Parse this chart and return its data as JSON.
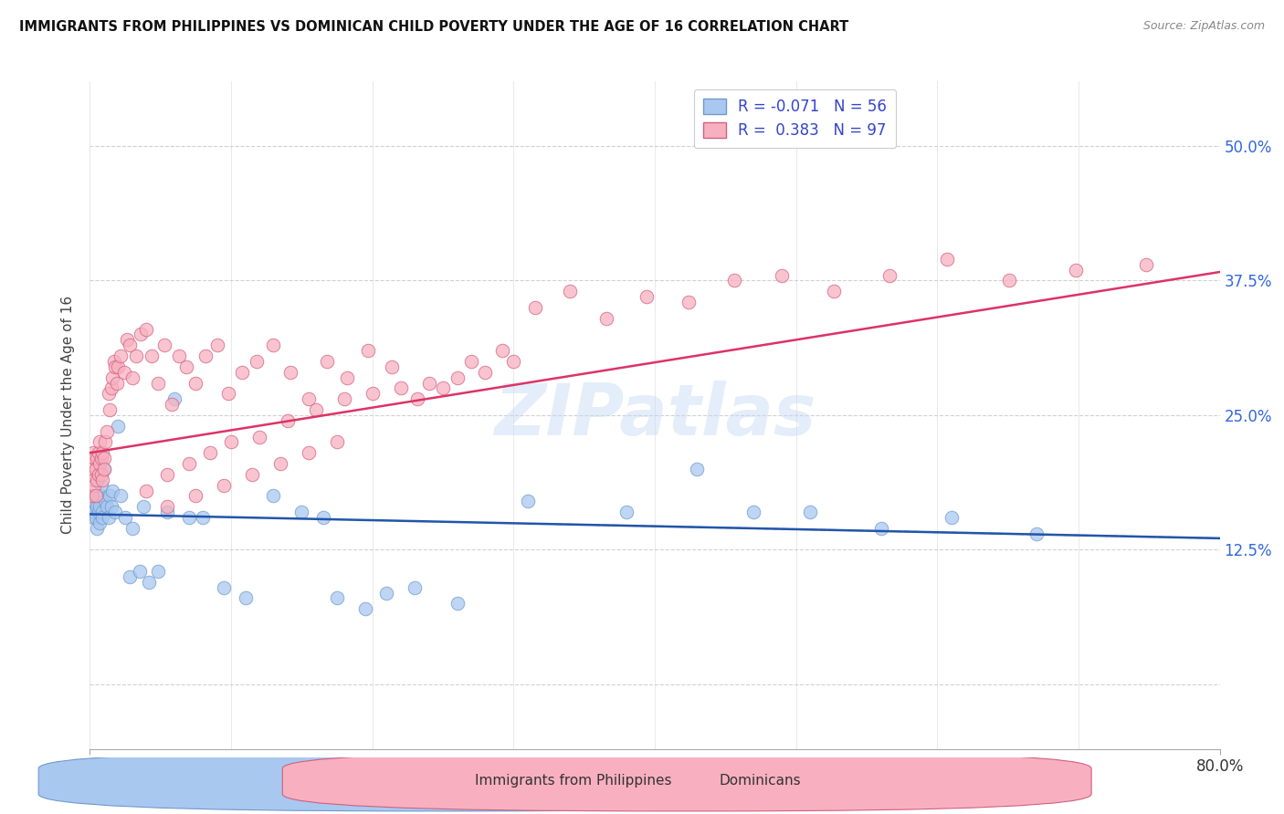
{
  "title": "IMMIGRANTS FROM PHILIPPINES VS DOMINICAN CHILD POVERTY UNDER THE AGE OF 16 CORRELATION CHART",
  "source": "Source: ZipAtlas.com",
  "ylabel": "Child Poverty Under the Age of 16",
  "yticks": [
    0.0,
    0.125,
    0.25,
    0.375,
    0.5
  ],
  "ytick_labels": [
    "",
    "12.5%",
    "25.0%",
    "37.5%",
    "50.0%"
  ],
  "xmin": 0.0,
  "xmax": 0.8,
  "ymin": -0.06,
  "ymax": 0.56,
  "legend_r1": "R = -0.071",
  "legend_n1": "N = 56",
  "legend_r2": "R =  0.383",
  "legend_n2": "N = 97",
  "legend_label1": "Immigrants from Philippines",
  "legend_label2": "Dominicans",
  "color_philippines": "#A8C8F0",
  "color_dominican": "#F8B0C0",
  "color_philippines_edge": "#7099CC",
  "color_dominican_edge": "#D06080",
  "color_philippines_line": "#2255AA",
  "color_dominican_line": "#DD3366",
  "background_color": "#ffffff",
  "grid_color": "#cccccc",
  "watermark": "ZIPatlas",
  "phil_x": [
    0.001,
    0.002,
    0.002,
    0.003,
    0.003,
    0.004,
    0.004,
    0.005,
    0.005,
    0.006,
    0.006,
    0.007,
    0.007,
    0.008,
    0.008,
    0.009,
    0.009,
    0.01,
    0.011,
    0.012,
    0.013,
    0.014,
    0.015,
    0.016,
    0.018,
    0.02,
    0.022,
    0.025,
    0.028,
    0.03,
    0.035,
    0.038,
    0.042,
    0.048,
    0.055,
    0.06,
    0.07,
    0.08,
    0.095,
    0.11,
    0.13,
    0.15,
    0.165,
    0.175,
    0.195,
    0.21,
    0.23,
    0.26,
    0.31,
    0.38,
    0.43,
    0.47,
    0.51,
    0.56,
    0.61,
    0.67
  ],
  "phil_y": [
    0.175,
    0.165,
    0.155,
    0.16,
    0.17,
    0.155,
    0.175,
    0.165,
    0.145,
    0.16,
    0.175,
    0.15,
    0.165,
    0.175,
    0.185,
    0.16,
    0.155,
    0.2,
    0.17,
    0.165,
    0.155,
    0.175,
    0.165,
    0.18,
    0.16,
    0.24,
    0.175,
    0.155,
    0.1,
    0.145,
    0.105,
    0.165,
    0.095,
    0.105,
    0.16,
    0.265,
    0.155,
    0.155,
    0.09,
    0.08,
    0.175,
    0.16,
    0.155,
    0.08,
    0.07,
    0.085,
    0.09,
    0.075,
    0.17,
    0.16,
    0.2,
    0.16,
    0.16,
    0.145,
    0.155,
    0.14
  ],
  "dom_x": [
    0.001,
    0.001,
    0.002,
    0.002,
    0.003,
    0.003,
    0.004,
    0.004,
    0.005,
    0.005,
    0.006,
    0.006,
    0.007,
    0.007,
    0.008,
    0.008,
    0.009,
    0.009,
    0.01,
    0.01,
    0.011,
    0.012,
    0.013,
    0.014,
    0.015,
    0.016,
    0.017,
    0.018,
    0.019,
    0.02,
    0.022,
    0.024,
    0.026,
    0.028,
    0.03,
    0.033,
    0.036,
    0.04,
    0.044,
    0.048,
    0.053,
    0.058,
    0.063,
    0.068,
    0.075,
    0.082,
    0.09,
    0.098,
    0.108,
    0.118,
    0.13,
    0.142,
    0.155,
    0.168,
    0.182,
    0.197,
    0.214,
    0.232,
    0.25,
    0.27,
    0.292,
    0.315,
    0.34,
    0.366,
    0.394,
    0.424,
    0.456,
    0.49,
    0.527,
    0.566,
    0.607,
    0.651,
    0.698,
    0.748,
    0.04,
    0.055,
    0.07,
    0.085,
    0.1,
    0.12,
    0.14,
    0.16,
    0.18,
    0.2,
    0.22,
    0.24,
    0.26,
    0.28,
    0.3,
    0.055,
    0.075,
    0.095,
    0.115,
    0.135,
    0.155,
    0.175
  ],
  "dom_y": [
    0.175,
    0.2,
    0.19,
    0.215,
    0.185,
    0.21,
    0.175,
    0.2,
    0.19,
    0.21,
    0.195,
    0.215,
    0.205,
    0.225,
    0.195,
    0.21,
    0.215,
    0.19,
    0.21,
    0.2,
    0.225,
    0.235,
    0.27,
    0.255,
    0.275,
    0.285,
    0.3,
    0.295,
    0.28,
    0.295,
    0.305,
    0.29,
    0.32,
    0.315,
    0.285,
    0.305,
    0.325,
    0.33,
    0.305,
    0.28,
    0.315,
    0.26,
    0.305,
    0.295,
    0.28,
    0.305,
    0.315,
    0.27,
    0.29,
    0.3,
    0.315,
    0.29,
    0.265,
    0.3,
    0.285,
    0.31,
    0.295,
    0.265,
    0.275,
    0.3,
    0.31,
    0.35,
    0.365,
    0.34,
    0.36,
    0.355,
    0.375,
    0.38,
    0.365,
    0.38,
    0.395,
    0.375,
    0.385,
    0.39,
    0.18,
    0.195,
    0.205,
    0.215,
    0.225,
    0.23,
    0.245,
    0.255,
    0.265,
    0.27,
    0.275,
    0.28,
    0.285,
    0.29,
    0.3,
    0.165,
    0.175,
    0.185,
    0.195,
    0.205,
    0.215,
    0.225
  ],
  "phil_slope": -0.028,
  "phil_intercept": 0.158,
  "dom_slope": 0.21,
  "dom_intercept": 0.215
}
